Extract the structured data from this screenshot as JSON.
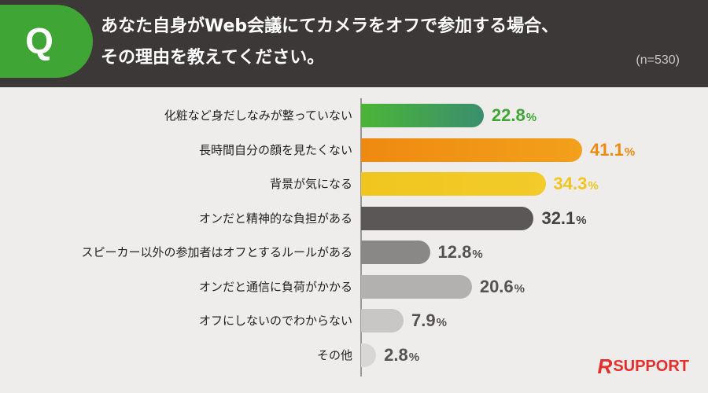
{
  "header": {
    "q_label": "Q",
    "title_lines": [
      "あなた自身がWeb会議にてカメラをオフで参加する場合、",
      "その理由を教えてください。"
    ],
    "sample_size": "(n=530)"
  },
  "logo": {
    "mark": "R",
    "text": "SUPPORT"
  },
  "chart_data": {
    "type": "bar",
    "orientation": "horizontal",
    "unit": "%",
    "xlim": [
      0,
      45
    ],
    "categories": [
      "化粧など身だしなみが整っていない",
      "長時間自分の顔を見たくない",
      "背景が気になる",
      "オンだと精神的な負担がある",
      "スピーカー以外の参加者はオフとするルールがある",
      "オンだと通信に負荷がかかる",
      "オフにしないのでわからない",
      "その他"
    ],
    "values": [
      22.8,
      41.1,
      34.3,
      32.1,
      12.8,
      20.6,
      7.9,
      2.8
    ],
    "colors": [
      [
        "#4bb536",
        "#3a8f6e"
      ],
      [
        "#ee8a10",
        "#f3a01c"
      ],
      [
        "#f0c61e",
        "#f3cb2a"
      ],
      [
        "#5a5756",
        "#5a5756"
      ],
      [
        "#8a8887",
        "#8a8887"
      ],
      [
        "#b3b1b0",
        "#b3b1b0"
      ],
      [
        "#c9c7c6",
        "#c9c7c6"
      ],
      [
        "#d9d7d6",
        "#d9d7d6"
      ]
    ],
    "label_colors": [
      "#3fa535",
      "#ee8a10",
      "#f0c61e",
      "#444140",
      "#555251",
      "#555251",
      "#555251",
      "#555251"
    ]
  }
}
